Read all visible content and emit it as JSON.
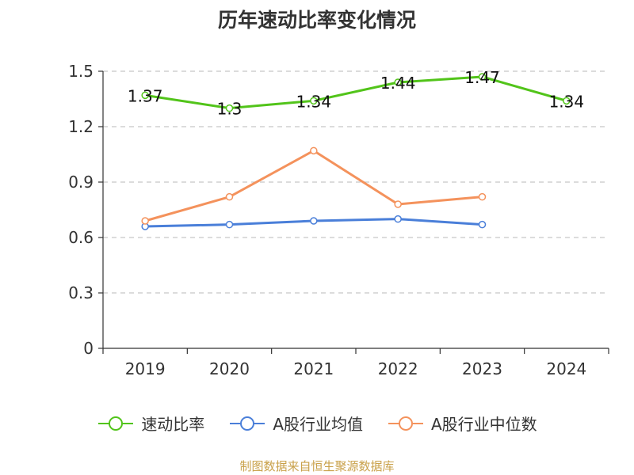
{
  "chart_data": {
    "type": "line",
    "title": "历年速动比率变化情况",
    "categories": [
      "2019",
      "2020",
      "2021",
      "2022",
      "2023",
      "2024"
    ],
    "ylim": [
      0,
      1.5
    ],
    "yticks": [
      "0",
      "0.3",
      "0.6",
      "0.9",
      "1.2",
      "1.5"
    ],
    "grid": true,
    "legend_position": "bottom",
    "series": [
      {
        "name": "速动比率",
        "color": "#52c41a",
        "values": [
          1.37,
          1.3,
          1.34,
          1.44,
          1.47,
          1.34
        ],
        "labels": [
          "1.37",
          "1.3",
          "1.34",
          "1.44",
          "1.47",
          "1.34"
        ]
      },
      {
        "name": "A股行业均值",
        "color": "#4a7fd9",
        "values": [
          0.66,
          0.67,
          0.69,
          0.7,
          0.67,
          null
        ]
      },
      {
        "name": "A股行业中位数",
        "color": "#f4925c",
        "values": [
          0.69,
          0.82,
          1.07,
          0.78,
          0.82,
          null
        ]
      }
    ]
  },
  "source": "制图数据来自恒生聚源数据库"
}
